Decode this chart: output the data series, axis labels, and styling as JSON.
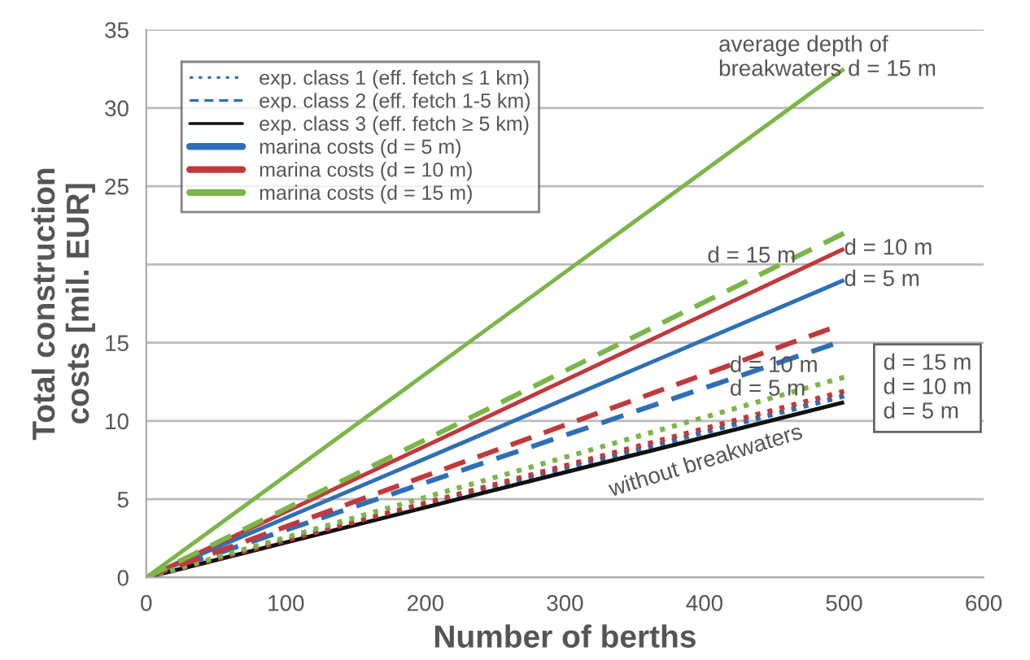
{
  "chart_data": {
    "type": "line",
    "xlabel": "Number of berths",
    "ylabel": "Total construction\ncosts [mil. EUR]",
    "xlim": [
      0,
      600
    ],
    "xticks": [
      0,
      100,
      200,
      300,
      400,
      500,
      600
    ],
    "ylim": [
      0,
      35
    ],
    "yticks": [
      0,
      5,
      10,
      15,
      {
        "value": 20,
        "label": null
      },
      25,
      30,
      35
    ],
    "grid": "y",
    "legend": "top left",
    "marker": "none",
    "series": [
      {
        "name": "exp. class 1 (eff. fetch ≤ 1 km)",
        "color": "#2f6fb7",
        "line_style": "dotted",
        "x": [
          0,
          500
        ],
        "values": [
          0,
          11.6
        ]
      },
      {
        "name": "exp. class 2 (eff. fetch 1-5 km)",
        "color": "#2f6fb7",
        "line_style": "dashed",
        "x": [
          0,
          492
        ],
        "values": [
          0,
          14.9
        ]
      },
      {
        "name": "exp. class 3 (eff. fetch ≥ 5 km)",
        "color": "#111111",
        "line_style": "solid",
        "x": [
          0,
          500
        ],
        "values": [
          0,
          11.2
        ]
      },
      {
        "name": "marina costs (d = 5 m)",
        "color": "#2f6fb7",
        "line_style": "solid",
        "x": [
          0,
          500
        ],
        "values": [
          0,
          19.0
        ]
      },
      {
        "name": "marina costs (d = 10 m)",
        "color": "#c0393b",
        "line_style": "solid",
        "x": [
          0,
          500
        ],
        "values": [
          0,
          21.0
        ]
      },
      {
        "name": "marina costs (d = 15 m)",
        "color": "#7ab648",
        "line_style": "solid",
        "x": [
          0,
          500
        ],
        "values": [
          0,
          32.5
        ]
      },
      {
        "color": "#c0393b",
        "line_style": "dotted",
        "x": [
          0,
          500
        ],
        "values": [
          0,
          11.9
        ]
      },
      {
        "color": "#7ab648",
        "line_style": "dotted",
        "x": [
          0,
          500
        ],
        "values": [
          0,
          12.8
        ]
      },
      {
        "color": "#c0393b",
        "line_style": "dashed",
        "x": [
          0,
          490
        ],
        "values": [
          0,
          15.9
        ]
      },
      {
        "color": "#7ab648",
        "line_style": "dashed",
        "x": [
          0,
          500
        ],
        "values": [
          0,
          22.0
        ]
      }
    ],
    "annotations": [
      "average depth of\nbreakwaters d = 15 m",
      "d = 15 m",
      "d = 10 m",
      "d = 5 m",
      "d = 10 m",
      "d = 5 m",
      "d = 15 m\nd = 10 m\nd = 5 m",
      "without breakwaters"
    ]
  }
}
